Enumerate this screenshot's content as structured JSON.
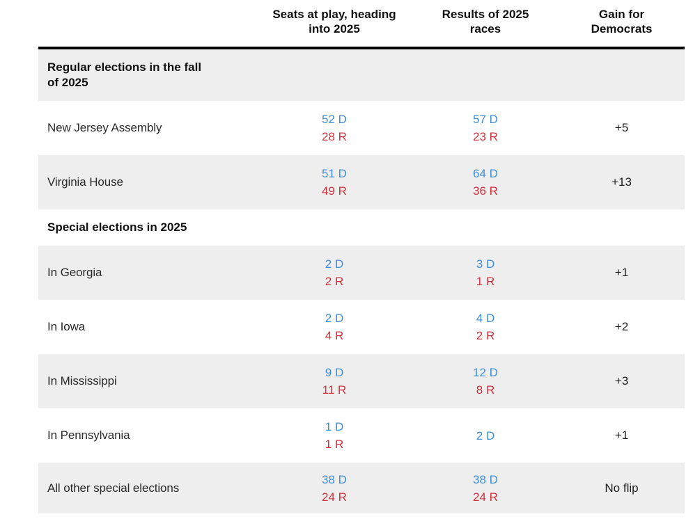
{
  "chart_data": {
    "type": "table",
    "title": "",
    "columns": [
      "",
      "Seats at play, heading into 2025",
      "Results of 2025 races",
      "Gain for Democrats"
    ],
    "rows": [
      {
        "type": "section",
        "label": "Regular elections in the fall of 2025"
      },
      {
        "type": "data",
        "label": "New Jersey Assembly",
        "seats_d": "52 D",
        "seats_r": "28 R",
        "results_d": "57 D",
        "results_r": "23 R",
        "gain": "+5"
      },
      {
        "type": "data",
        "label": "Virginia House",
        "seats_d": "51 D",
        "seats_r": "49 R",
        "results_d": "64 D",
        "results_r": "36 R",
        "gain": "+13"
      },
      {
        "type": "section",
        "label": "Special elections in 2025"
      },
      {
        "type": "data",
        "label": "In Georgia",
        "seats_d": "2 D",
        "seats_r": "2 R",
        "results_d": "3 D",
        "results_r": "1 R",
        "gain": "+1"
      },
      {
        "type": "data",
        "label": "In Iowa",
        "seats_d": "2 D",
        "seats_r": "4 R",
        "results_d": "4 D",
        "results_r": "2 R",
        "gain": "+2"
      },
      {
        "type": "data",
        "label": "In Mississippi",
        "seats_d": "9 D",
        "seats_r": "11 R",
        "results_d": "12 D",
        "results_r": "8 R",
        "gain": "+3"
      },
      {
        "type": "data",
        "label": "In Pennsylvania",
        "seats_d": "1 D",
        "seats_r": "1 R",
        "results_d": "2 D",
        "gain": "+1"
      },
      {
        "type": "data",
        "label": "All other special elections",
        "seats_d": "38 D",
        "seats_r": "24 R",
        "results_d": "38 D",
        "results_r": "24 R",
        "gain": "No flip"
      }
    ],
    "colors": {
      "democrat_blue": "#3e8edb",
      "republican_red": "#cf323e",
      "row_stripe_gray": "#eeeeee",
      "header_rule_black": "#000000"
    },
    "layout": {
      "grid": "off",
      "legend": "none",
      "stripe_pattern": "alternating"
    }
  }
}
